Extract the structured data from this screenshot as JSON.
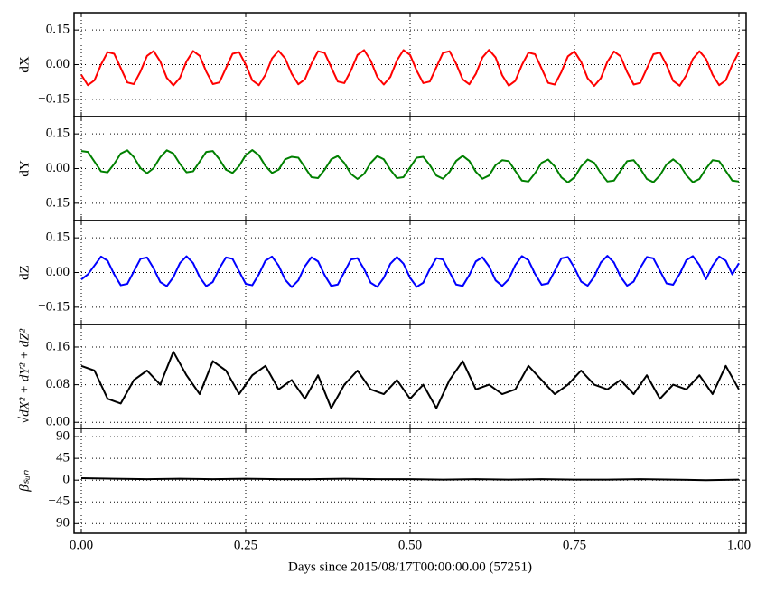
{
  "chart_data": [
    {
      "type": "line",
      "ylabel": "dX",
      "xlim": [
        -0.011,
        1.011
      ],
      "ylim": [
        -0.225,
        0.225
      ],
      "grid": true,
      "yticks": [
        0.15,
        {
          "value": 0,
          "label": "0.00"
        },
        {
          "value": -0.15,
          "label": "−0.15"
        }
      ],
      "x": [
        0,
        0.01,
        0.02,
        0.03,
        0.04,
        0.05,
        0.06,
        0.07,
        0.08,
        0.09,
        0.1,
        0.11,
        0.12,
        0.13,
        0.14,
        0.15,
        0.16,
        0.17,
        0.18,
        0.19,
        0.2,
        0.21,
        0.22,
        0.23,
        0.24,
        0.25,
        0.26,
        0.27,
        0.28,
        0.29,
        0.3,
        0.31,
        0.32,
        0.33,
        0.34,
        0.35,
        0.36,
        0.37,
        0.38,
        0.39,
        0.4,
        0.41,
        0.42,
        0.43,
        0.44,
        0.45,
        0.46,
        0.47,
        0.48,
        0.49,
        0.5,
        0.51,
        0.52,
        0.53,
        0.54,
        0.55,
        0.56,
        0.57,
        0.58,
        0.59,
        0.6,
        0.61,
        0.62,
        0.63,
        0.64,
        0.65,
        0.66,
        0.67,
        0.68,
        0.69,
        0.7,
        0.71,
        0.72,
        0.73,
        0.74,
        0.75,
        0.76,
        0.77,
        0.78,
        0.79,
        0.8,
        0.81,
        0.82,
        0.83,
        0.84,
        0.85,
        0.86,
        0.87,
        0.88,
        0.89,
        0.9,
        0.91,
        0.92,
        0.93,
        0.94,
        0.95,
        0.96,
        0.97,
        0.98,
        0.99,
        1
      ],
      "series": [
        {
          "color": "#ff0000",
          "values": [
            -0.044,
            -0.089,
            -0.068,
            0.0,
            0.054,
            0.047,
            -0.015,
            -0.077,
            -0.084,
            -0.03,
            0.038,
            0.059,
            0.014,
            -0.057,
            -0.09,
            -0.057,
            0.014,
            0.059,
            0.038,
            -0.03,
            -0.084,
            -0.077,
            -0.015,
            0.047,
            0.054,
            0.0,
            -0.068,
            -0.089,
            -0.044,
            0.027,
            0.06,
            0.027,
            -0.04,
            -0.085,
            -0.064,
            0.004,
            0.058,
            0.051,
            -0.011,
            -0.073,
            -0.08,
            -0.026,
            0.042,
            0.063,
            0.018,
            -0.053,
            -0.086,
            -0.053,
            0.018,
            0.063,
            0.042,
            -0.026,
            -0.08,
            -0.073,
            -0.011,
            0.051,
            0.058,
            0.004,
            -0.064,
            -0.085,
            -0.04,
            0.031,
            0.064,
            0.031,
            -0.046,
            -0.091,
            -0.07,
            -0.002,
            0.052,
            0.045,
            -0.017,
            -0.079,
            -0.086,
            -0.032,
            0.036,
            0.057,
            0.012,
            -0.059,
            -0.092,
            -0.059,
            0.012,
            0.057,
            0.036,
            -0.032,
            -0.086,
            -0.079,
            -0.017,
            0.045,
            0.052,
            -0.002,
            -0.07,
            -0.091,
            -0.046,
            0.025,
            0.058,
            0.025,
            -0.044,
            -0.089,
            -0.068,
            0.0,
            0.054
          ]
        }
      ]
    },
    {
      "type": "line",
      "ylabel": "dY",
      "xlim": [
        -0.011,
        1.011
      ],
      "ylim": [
        -0.225,
        0.225
      ],
      "grid": true,
      "yticks": [
        0.15,
        {
          "value": 0,
          "label": "0.00"
        },
        {
          "value": -0.15,
          "label": "−0.15"
        }
      ],
      "x": [
        0,
        0.01,
        0.02,
        0.03,
        0.04,
        0.05,
        0.06,
        0.07,
        0.08,
        0.09,
        0.1,
        0.11,
        0.12,
        0.13,
        0.14,
        0.15,
        0.16,
        0.17,
        0.18,
        0.19,
        0.2,
        0.21,
        0.22,
        0.23,
        0.24,
        0.25,
        0.26,
        0.27,
        0.28,
        0.29,
        0.3,
        0.31,
        0.32,
        0.33,
        0.34,
        0.35,
        0.36,
        0.37,
        0.38,
        0.39,
        0.4,
        0.41,
        0.42,
        0.43,
        0.44,
        0.45,
        0.46,
        0.47,
        0.48,
        0.49,
        0.5,
        0.51,
        0.52,
        0.53,
        0.54,
        0.55,
        0.56,
        0.57,
        0.58,
        0.59,
        0.6,
        0.61,
        0.62,
        0.63,
        0.64,
        0.65,
        0.66,
        0.67,
        0.68,
        0.69,
        0.7,
        0.71,
        0.72,
        0.73,
        0.74,
        0.75,
        0.76,
        0.77,
        0.78,
        0.79,
        0.8,
        0.81,
        0.82,
        0.83,
        0.84,
        0.85,
        0.86,
        0.87,
        0.88,
        0.89,
        0.9,
        0.91,
        0.92,
        0.93,
        0.94,
        0.95,
        0.96,
        0.97,
        0.98,
        0.99,
        1
      ],
      "series": [
        {
          "color": "#008000",
          "values": [
            0.076,
            0.072,
            0.03,
            -0.012,
            -0.016,
            0.02,
            0.065,
            0.079,
            0.049,
            0.002,
            -0.02,
            0.002,
            0.049,
            0.079,
            0.065,
            0.02,
            -0.016,
            -0.012,
            0.03,
            0.072,
            0.076,
            0.04,
            -0.005,
            -0.019,
            0.011,
            0.058,
            0.08,
            0.058,
            0.011,
            -0.019,
            -0.005,
            0.04,
            0.051,
            0.047,
            0.005,
            -0.037,
            -0.041,
            -0.005,
            0.04,
            0.054,
            0.024,
            -0.023,
            -0.045,
            -0.023,
            0.024,
            0.054,
            0.04,
            -0.005,
            -0.041,
            -0.037,
            0.005,
            0.047,
            0.051,
            0.015,
            -0.03,
            -0.044,
            -0.014,
            0.033,
            0.055,
            0.033,
            -0.014,
            -0.044,
            -0.03,
            0.015,
            0.036,
            0.032,
            -0.01,
            -0.052,
            -0.056,
            -0.02,
            0.025,
            0.039,
            0.009,
            -0.038,
            -0.06,
            -0.038,
            0.009,
            0.039,
            0.025,
            -0.02,
            -0.056,
            -0.052,
            -0.01,
            0.032,
            0.036,
            0.0,
            -0.045,
            -0.059,
            -0.029,
            0.018,
            0.04,
            0.018,
            -0.029,
            -0.059,
            -0.045,
            0.0,
            0.036,
            0.032,
            -0.01,
            -0.052,
            -0.056
          ]
        }
      ]
    },
    {
      "type": "line",
      "ylabel": "dZ",
      "xlim": [
        -0.011,
        1.011
      ],
      "ylim": [
        -0.225,
        0.225
      ],
      "grid": true,
      "yticks": [
        0.15,
        {
          "value": 0,
          "label": "0.00"
        },
        {
          "value": -0.15,
          "label": "−0.15"
        }
      ],
      "x": [
        0,
        0.01,
        0.02,
        0.03,
        0.04,
        0.05,
        0.06,
        0.07,
        0.08,
        0.09,
        0.1,
        0.11,
        0.12,
        0.13,
        0.14,
        0.15,
        0.16,
        0.17,
        0.18,
        0.19,
        0.2,
        0.21,
        0.22,
        0.23,
        0.24,
        0.25,
        0.26,
        0.27,
        0.28,
        0.29,
        0.3,
        0.31,
        0.32,
        0.33,
        0.34,
        0.35,
        0.36,
        0.37,
        0.38,
        0.39,
        0.4,
        0.41,
        0.42,
        0.43,
        0.44,
        0.45,
        0.46,
        0.47,
        0.48,
        0.49,
        0.5,
        0.51,
        0.52,
        0.53,
        0.54,
        0.55,
        0.56,
        0.57,
        0.58,
        0.59,
        0.6,
        0.61,
        0.62,
        0.63,
        0.64,
        0.65,
        0.66,
        0.67,
        0.68,
        0.69,
        0.7,
        0.71,
        0.72,
        0.73,
        0.74,
        0.75,
        0.76,
        0.77,
        0.78,
        0.79,
        0.8,
        0.81,
        0.82,
        0.83,
        0.84,
        0.85,
        0.86,
        0.87,
        0.88,
        0.89,
        0.9,
        0.91,
        0.92,
        0.93,
        0.94,
        0.95,
        0.96,
        0.97,
        0.98,
        0.99,
        1
      ],
      "series": [
        {
          "color": "#0000ff",
          "values": [
            -0.03,
            -0.008,
            0.03,
            0.069,
            0.051,
            -0.008,
            -0.055,
            -0.049,
            0.005,
            0.059,
            0.065,
            0.018,
            -0.041,
            -0.059,
            -0.02,
            0.041,
            0.07,
            0.041,
            -0.02,
            -0.059,
            -0.041,
            0.018,
            0.065,
            0.059,
            0.005,
            -0.049,
            -0.055,
            -0.008,
            0.051,
            0.069,
            0.03,
            -0.031,
            -0.063,
            -0.034,
            0.027,
            0.066,
            0.048,
            -0.011,
            -0.058,
            -0.052,
            0.002,
            0.056,
            0.062,
            0.015,
            -0.044,
            -0.062,
            -0.023,
            0.038,
            0.067,
            0.038,
            -0.023,
            -0.062,
            -0.044,
            0.015,
            0.062,
            0.056,
            0.002,
            -0.052,
            -0.058,
            -0.011,
            0.048,
            0.066,
            0.027,
            -0.034,
            -0.058,
            -0.029,
            0.032,
            0.071,
            0.053,
            -0.006,
            -0.053,
            -0.047,
            0.007,
            0.061,
            0.067,
            0.02,
            -0.039,
            -0.057,
            -0.018,
            0.043,
            0.072,
            0.043,
            -0.018,
            -0.057,
            -0.039,
            0.02,
            0.067,
            0.061,
            0.007,
            -0.047,
            -0.053,
            -0.006,
            0.053,
            0.071,
            0.032,
            -0.029,
            0.03,
            0.069,
            0.051,
            -0.008,
            0.04
          ]
        }
      ]
    },
    {
      "type": "line",
      "ylabel": "√dX² + dY² + dZ²",
      "xlim": [
        -0.011,
        1.011
      ],
      "ylim": [
        -0.013,
        0.208
      ],
      "grid": true,
      "yticks": [
        0.16,
        0.08,
        {
          "value": 0,
          "label": "0.00"
        }
      ],
      "x": [
        0,
        0.02,
        0.04,
        0.06,
        0.08,
        0.1,
        0.12,
        0.14,
        0.16,
        0.18,
        0.2,
        0.22,
        0.24,
        0.26,
        0.28,
        0.3,
        0.32,
        0.34,
        0.36,
        0.38,
        0.4,
        0.42,
        0.44,
        0.46,
        0.48,
        0.5,
        0.52,
        0.54,
        0.56,
        0.58,
        0.6,
        0.62,
        0.64,
        0.66,
        0.68,
        0.7,
        0.72,
        0.74,
        0.76,
        0.78,
        0.8,
        0.82,
        0.84,
        0.86,
        0.88,
        0.9,
        0.92,
        0.94,
        0.96,
        0.98,
        1
      ],
      "series": [
        {
          "color": "#000000",
          "values": [
            0.12,
            0.11,
            0.05,
            0.04,
            0.09,
            0.11,
            0.08,
            0.15,
            0.1,
            0.06,
            0.13,
            0.11,
            0.06,
            0.1,
            0.12,
            0.07,
            0.09,
            0.05,
            0.1,
            0.03,
            0.08,
            0.11,
            0.07,
            0.06,
            0.09,
            0.05,
            0.08,
            0.03,
            0.09,
            0.13,
            0.07,
            0.08,
            0.06,
            0.07,
            0.12,
            0.09,
            0.06,
            0.08,
            0.11,
            0.08,
            0.07,
            0.09,
            0.06,
            0.1,
            0.05,
            0.08,
            0.07,
            0.1,
            0.06,
            0.12,
            0.07
          ]
        }
      ]
    },
    {
      "type": "line",
      "ylabel": "βₛᵤₙ",
      "xlim": [
        -0.011,
        1.011
      ],
      "ylim": [
        -110,
        107
      ],
      "grid": true,
      "yticks": [
        90,
        45,
        0,
        {
          "value": -45,
          "label": "−45"
        },
        {
          "value": -90,
          "label": "−90"
        }
      ],
      "xticks": [
        {
          "value": 0,
          "label": "0.00"
        },
        0.25,
        {
          "value": 0.5,
          "label": "0.50"
        },
        0.75,
        {
          "value": 1,
          "label": "1.00"
        }
      ],
      "xlabel": "Days since 2015/08/17T00:00:00.00 (57251)",
      "x": [
        0,
        0.05,
        0.1,
        0.15,
        0.2,
        0.25,
        0.3,
        0.35,
        0.4,
        0.45,
        0.5,
        0.55,
        0.6,
        0.65,
        0.7,
        0.75,
        0.8,
        0.85,
        0.9,
        0.95,
        1
      ],
      "series": [
        {
          "color": "#000000",
          "values": [
            4,
            3,
            2,
            3,
            2,
            3,
            2,
            2,
            3,
            2,
            2,
            1,
            2,
            1,
            2,
            1,
            1,
            2,
            1,
            0,
            1
          ]
        }
      ]
    }
  ]
}
